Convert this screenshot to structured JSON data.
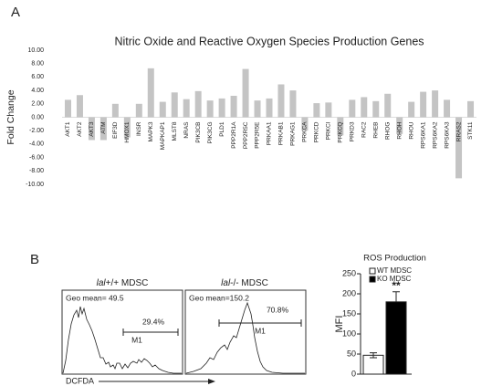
{
  "panels": [
    "A",
    "B"
  ],
  "chart_data": [
    {
      "type": "bar",
      "title": "Nitric Oxide and Reactive Oxygen Species Production Genes",
      "y_label": "Fold Change",
      "categories": [
        "AKT1",
        "AKT2",
        "AKT3",
        "ATM",
        "EIF3D",
        "HMOX1",
        "INSR",
        "MAPK3",
        "MAPKAP1",
        "MLST8",
        "NRAS",
        "PIK3CB",
        "PIK3CG",
        "PLD1",
        "PPP2R1A",
        "PPP2R5C",
        "PPP2R5E",
        "PRKAA1",
        "PRKAB1",
        "PRKAG1",
        "PRKCA",
        "PRKCD",
        "PRKCI",
        "PRKCQ",
        "PRKD3",
        "RAC2",
        "RHEB",
        "RHOG",
        "RHOH",
        "RHOU",
        "RPS6KA1",
        "RPS6KA2",
        "RPS6KA3",
        "RRAS2",
        "STK11"
      ],
      "values": [
        2.6,
        3.3,
        -3.4,
        -3.4,
        2.0,
        -3.0,
        2.0,
        7.3,
        2.3,
        3.7,
        2.7,
        3.9,
        2.5,
        2.8,
        3.2,
        7.2,
        2.5,
        2.8,
        4.9,
        4.0,
        -2.0,
        2.1,
        2.2,
        -2.7,
        2.6,
        3.0,
        2.4,
        3.5,
        -2.5,
        2.3,
        3.8,
        4.0,
        2.6,
        -9.1,
        2.4
      ],
      "color": "#c4c4c4",
      "ylim": [
        -10,
        10
      ],
      "yticks": [
        {
          "value": 10,
          "label": "10.00"
        },
        {
          "value": 8,
          "label": "8.00"
        },
        {
          "value": 6,
          "label": "6.00"
        },
        {
          "value": 4,
          "label": "4.00"
        },
        {
          "value": 2,
          "label": "2.00"
        },
        {
          "value": 0,
          "label": "0.00"
        },
        {
          "value": -2,
          "label": "-2.00"
        },
        {
          "value": -4,
          "label": "-4.00"
        },
        {
          "value": -6,
          "label": "-6.00"
        },
        {
          "value": -8,
          "label": "-8.00"
        },
        {
          "value": -10,
          "label": "-10.00"
        }
      ],
      "grid": false
    },
    {
      "type": "bar",
      "title": "ROS Production",
      "y_label": "MFI",
      "categories": [
        "WT MDSC",
        "KO MDSC"
      ],
      "values": [
        47,
        180
      ],
      "errors": [
        6,
        25
      ],
      "colors": [
        "#ffffff",
        "#000000"
      ],
      "annotation": "**",
      "legend": "top",
      "ylim": [
        0,
        250
      ],
      "yticks": [
        0,
        50,
        100,
        150,
        200,
        250
      ],
      "grid": false
    }
  ],
  "flow": [
    {
      "title_italic": "lal",
      "title": "+/+ MDSC",
      "geo_mean": "Geo mean= 49.5",
      "percent": "29.4%",
      "gate": "M1"
    },
    {
      "title_italic": "lal",
      "title": "-/- MDSC",
      "geo_mean": "Geo mean=150.2",
      "percent": "70.8%",
      "gate": "M1"
    }
  ],
  "x_axis_label": "DCFDA"
}
